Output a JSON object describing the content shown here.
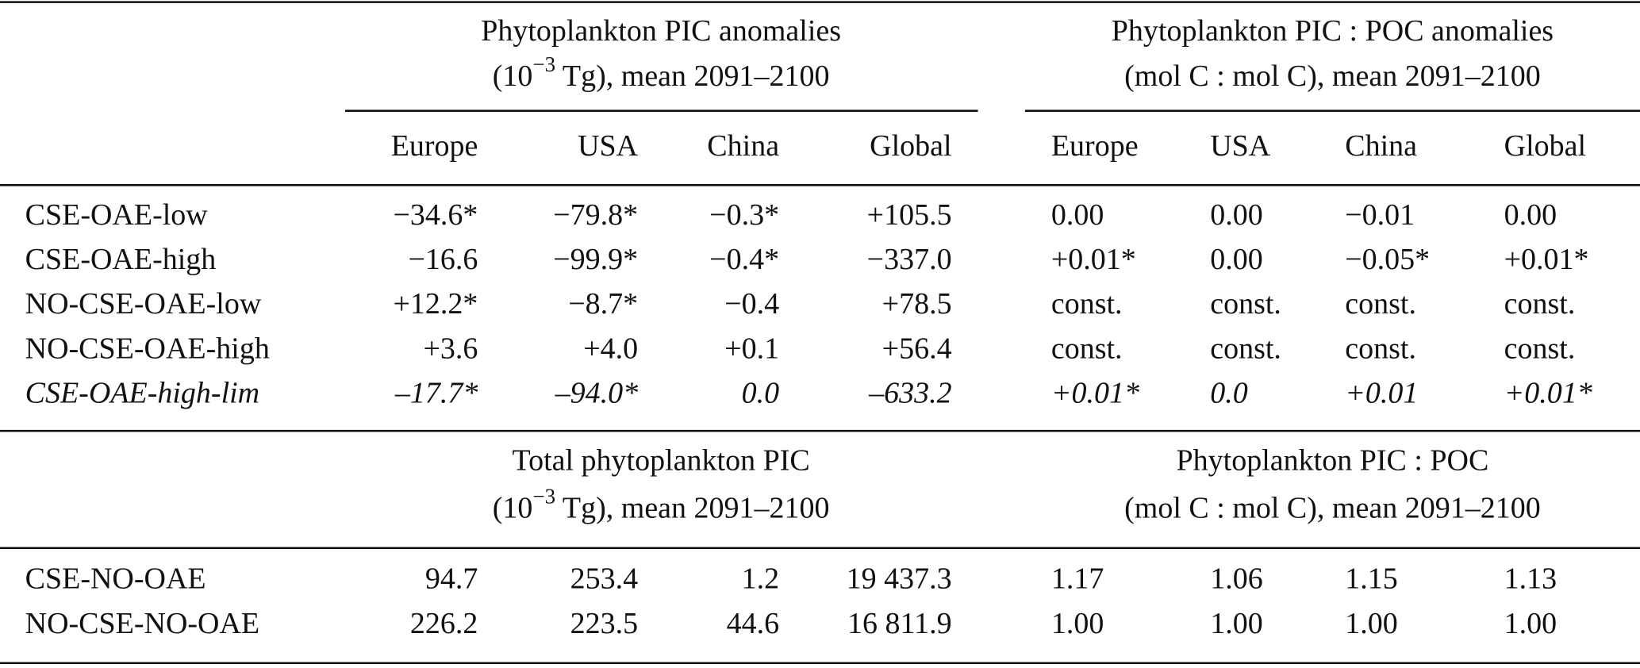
{
  "table": {
    "sections": [
      {
        "groups": [
          {
            "line1": "Phytoplankton PIC anomalies",
            "line2": [
              {
                "text": "(10"
              },
              {
                "text": "−3",
                "sup": true
              },
              {
                "text": " Tg), mean 2091–2100"
              }
            ]
          },
          {
            "line1": "Phytoplankton PIC : POC anomalies",
            "line2": [
              {
                "text": "(mol C : mol C), mean 2091–2100"
              }
            ]
          }
        ],
        "columns": [
          "Europe",
          "USA",
          "China",
          "Global",
          "Europe",
          "USA",
          "China",
          "Global"
        ],
        "rows": [
          {
            "label": "CSE-OAE-low",
            "cells": [
              "−34.6*",
              "−79.8*",
              "−0.3*",
              "+105.5",
              "0.00",
              "0.00",
              "−0.01",
              "0.00"
            ]
          },
          {
            "label": "CSE-OAE-high",
            "cells": [
              "−16.6",
              "−99.9*",
              "−0.4*",
              "−337.0",
              "+0.01*",
              "0.00",
              "−0.05*",
              "+0.01*"
            ]
          },
          {
            "label": "NO-CSE-OAE-low",
            "cells": [
              "+12.2*",
              "−8.7*",
              "−0.4",
              "+78.5",
              "const.",
              "const.",
              "const.",
              "const."
            ]
          },
          {
            "label": "NO-CSE-OAE-high",
            "cells": [
              "+3.6",
              "+4.0",
              "+0.1",
              "+56.4",
              "const.",
              "const.",
              "const.",
              "const."
            ]
          },
          {
            "label": "CSE-OAE-high-lim",
            "italic": true,
            "cells": [
              "–17.7*",
              "–94.0*",
              "0.0",
              "–633.2",
              "+0.01*",
              "0.0",
              "+0.01",
              "+0.01*"
            ]
          }
        ]
      },
      {
        "groups": [
          {
            "line1": "Total phytoplankton PIC",
            "line2": [
              {
                "text": "(10"
              },
              {
                "text": "−3",
                "sup": true
              },
              {
                "text": " Tg), mean 2091–2100"
              }
            ]
          },
          {
            "line1": "Phytoplankton PIC : POC",
            "line2": [
              {
                "text": "(mol C : mol C), mean 2091–2100"
              }
            ]
          }
        ],
        "rows": [
          {
            "label": "CSE-NO-OAE",
            "cells": [
              "94.7",
              "253.4",
              "1.2",
              "19 437.3",
              "1.17",
              "1.06",
              "1.15",
              "1.13"
            ]
          },
          {
            "label": "NO-CSE-NO-OAE",
            "cells": [
              "226.2",
              "223.5",
              "44.6",
              "16 811.9",
              "1.00",
              "1.00",
              "1.00",
              "1.00"
            ]
          }
        ]
      }
    ]
  }
}
